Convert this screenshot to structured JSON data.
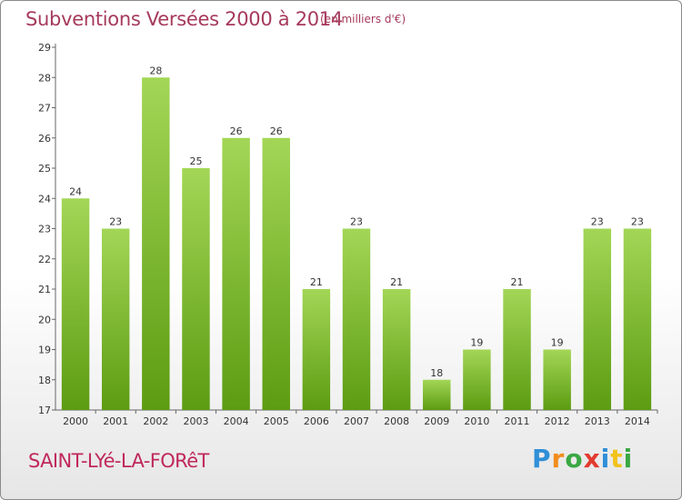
{
  "header": {
    "title": "Subventions Versées 2000 à 2014",
    "unit": "(en milliers d'€)"
  },
  "footer": {
    "commune": "SAINT-LYé-LA-FORêT",
    "brand": "Proxiti",
    "brand_colors": [
      "#2f8fd8",
      "#f28c1c",
      "#3aa843",
      "#e23b2e",
      "#2f8fd8",
      "#f2c21c",
      "#3aa843"
    ]
  },
  "colors": {
    "title": "#a63a5c",
    "commune": "#c0285a",
    "bar_light": "#a3d656",
    "bar_dark": "#5c9c12",
    "axis": "#666666"
  },
  "chart_data": {
    "type": "bar",
    "title": "Subventions Versées 2000 à 2014",
    "ylabel": "(en milliers d'€)",
    "xlabel": "",
    "categories": [
      "2000",
      "2001",
      "2002",
      "2003",
      "2004",
      "2005",
      "2006",
      "2007",
      "2008",
      "2009",
      "2010",
      "2011",
      "2012",
      "2013",
      "2014"
    ],
    "values": [
      24,
      23,
      28,
      25,
      26,
      26,
      21,
      23,
      21,
      18,
      19,
      21,
      19,
      23,
      23
    ],
    "ylim": [
      17,
      29
    ],
    "yticks": [
      17,
      18,
      19,
      20,
      21,
      22,
      23,
      24,
      25,
      26,
      27,
      28,
      29
    ],
    "grid": false,
    "legend": "none"
  }
}
